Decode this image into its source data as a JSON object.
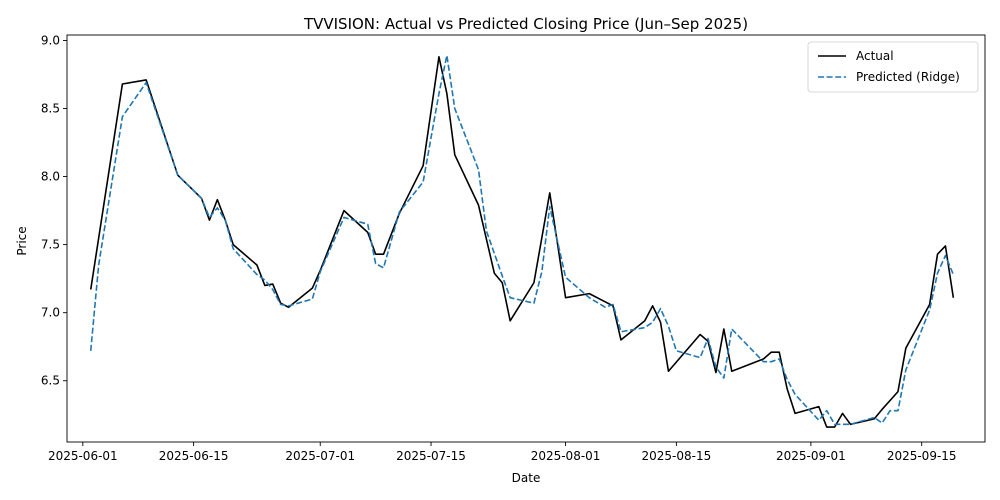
{
  "chart_data": {
    "type": "line",
    "title": "TVVISION: Actual vs Predicted Closing Price (Jun–Sep 2025)",
    "xlabel": "Date",
    "ylabel": "Price",
    "xlim": [
      "2025-05-30",
      "2025-09-23"
    ],
    "ylim": [
      6.05,
      9.04
    ],
    "x_ticks": [
      "2025-06-01",
      "2025-06-15",
      "2025-07-01",
      "2025-07-15",
      "2025-08-01",
      "2025-08-15",
      "2025-09-01",
      "2025-09-15"
    ],
    "y_ticks": [
      "6.5",
      "7.0",
      "7.5",
      "8.0",
      "8.5",
      "9.0"
    ],
    "grid": false,
    "legend_position": "top-right",
    "series": [
      {
        "name": "Actual",
        "color": "#000000",
        "dash": "solid",
        "points": [
          [
            "2025-06-02",
            7.17
          ],
          [
            "2025-06-06",
            8.68
          ],
          [
            "2025-06-09",
            8.71
          ],
          [
            "2025-06-13",
            8.01
          ],
          [
            "2025-06-16",
            7.84
          ],
          [
            "2025-06-17",
            7.68
          ],
          [
            "2025-06-18",
            7.83
          ],
          [
            "2025-06-19",
            7.68
          ],
          [
            "2025-06-20",
            7.5
          ],
          [
            "2025-06-23",
            7.35
          ],
          [
            "2025-06-24",
            7.2
          ],
          [
            "2025-06-25",
            7.21
          ],
          [
            "2025-06-26",
            7.07
          ],
          [
            "2025-06-27",
            7.04
          ],
          [
            "2025-06-30",
            7.18
          ],
          [
            "2025-07-01",
            7.31
          ],
          [
            "2025-07-04",
            7.75
          ],
          [
            "2025-07-07",
            7.59
          ],
          [
            "2025-07-08",
            7.43
          ],
          [
            "2025-07-09",
            7.43
          ],
          [
            "2025-07-11",
            7.73
          ],
          [
            "2025-07-14",
            8.08
          ],
          [
            "2025-07-16",
            8.88
          ],
          [
            "2025-07-17",
            8.61
          ],
          [
            "2025-07-18",
            8.16
          ],
          [
            "2025-07-21",
            7.79
          ],
          [
            "2025-07-23",
            7.29
          ],
          [
            "2025-07-24",
            7.22
          ],
          [
            "2025-07-25",
            6.94
          ],
          [
            "2025-07-28",
            7.22
          ],
          [
            "2025-07-30",
            7.88
          ],
          [
            "2025-07-31",
            7.5
          ],
          [
            "2025-08-01",
            7.11
          ],
          [
            "2025-08-04",
            7.14
          ],
          [
            "2025-08-06",
            7.08
          ],
          [
            "2025-08-07",
            7.05
          ],
          [
            "2025-08-08",
            6.8
          ],
          [
            "2025-08-11",
            6.94
          ],
          [
            "2025-08-12",
            7.05
          ],
          [
            "2025-08-13",
            6.93
          ],
          [
            "2025-08-14",
            6.57
          ],
          [
            "2025-08-18",
            6.84
          ],
          [
            "2025-08-19",
            6.79
          ],
          [
            "2025-08-20",
            6.56
          ],
          [
            "2025-08-21",
            6.88
          ],
          [
            "2025-08-22",
            6.57
          ],
          [
            "2025-08-26",
            6.66
          ],
          [
            "2025-08-27",
            6.71
          ],
          [
            "2025-08-28",
            6.71
          ],
          [
            "2025-08-29",
            6.44
          ],
          [
            "2025-08-30",
            6.26
          ],
          [
            "2025-09-02",
            6.31
          ],
          [
            "2025-09-03",
            6.16
          ],
          [
            "2025-09-04",
            6.16
          ],
          [
            "2025-09-05",
            6.26
          ],
          [
            "2025-09-06",
            6.18
          ],
          [
            "2025-09-09",
            6.22
          ],
          [
            "2025-09-10",
            6.29
          ],
          [
            "2025-09-12",
            6.42
          ],
          [
            "2025-09-13",
            6.74
          ],
          [
            "2025-09-16",
            7.06
          ],
          [
            "2025-09-17",
            7.43
          ],
          [
            "2025-09-18",
            7.49
          ],
          [
            "2025-09-19",
            7.11
          ]
        ]
      },
      {
        "name": "Predicted (Ridge)",
        "color": "#1f77b4",
        "dash": "dashed",
        "points": [
          [
            "2025-06-02",
            6.72
          ],
          [
            "2025-06-03",
            7.35
          ],
          [
            "2025-06-06",
            8.44
          ],
          [
            "2025-06-09",
            8.69
          ],
          [
            "2025-06-13",
            8.01
          ],
          [
            "2025-06-16",
            7.84
          ],
          [
            "2025-06-17",
            7.7
          ],
          [
            "2025-06-18",
            7.77
          ],
          [
            "2025-06-19",
            7.68
          ],
          [
            "2025-06-20",
            7.47
          ],
          [
            "2025-06-23",
            7.28
          ],
          [
            "2025-06-24",
            7.24
          ],
          [
            "2025-06-25",
            7.17
          ],
          [
            "2025-06-26",
            7.06
          ],
          [
            "2025-06-27",
            7.05
          ],
          [
            "2025-06-30",
            7.1
          ],
          [
            "2025-07-01",
            7.3
          ],
          [
            "2025-07-04",
            7.7
          ],
          [
            "2025-07-07",
            7.65
          ],
          [
            "2025-07-08",
            7.36
          ],
          [
            "2025-07-09",
            7.33
          ],
          [
            "2025-07-11",
            7.74
          ],
          [
            "2025-07-14",
            7.96
          ],
          [
            "2025-07-16",
            8.61
          ],
          [
            "2025-07-17",
            8.89
          ],
          [
            "2025-07-18",
            8.5
          ],
          [
            "2025-07-21",
            8.05
          ],
          [
            "2025-07-22",
            7.6
          ],
          [
            "2025-07-24",
            7.27
          ],
          [
            "2025-07-25",
            7.11
          ],
          [
            "2025-07-28",
            7.07
          ],
          [
            "2025-07-29",
            7.3
          ],
          [
            "2025-07-30",
            7.78
          ],
          [
            "2025-08-01",
            7.26
          ],
          [
            "2025-08-04",
            7.11
          ],
          [
            "2025-08-06",
            7.04
          ],
          [
            "2025-08-07",
            7.06
          ],
          [
            "2025-08-08",
            6.86
          ],
          [
            "2025-08-11",
            6.89
          ],
          [
            "2025-08-12",
            6.93
          ],
          [
            "2025-08-13",
            7.03
          ],
          [
            "2025-08-14",
            6.9
          ],
          [
            "2025-08-15",
            6.72
          ],
          [
            "2025-08-18",
            6.67
          ],
          [
            "2025-08-19",
            6.81
          ],
          [
            "2025-08-20",
            6.6
          ],
          [
            "2025-08-21",
            6.52
          ],
          [
            "2025-08-22",
            6.88
          ],
          [
            "2025-08-26",
            6.64
          ],
          [
            "2025-08-27",
            6.64
          ],
          [
            "2025-08-28",
            6.66
          ],
          [
            "2025-08-29",
            6.51
          ],
          [
            "2025-08-30",
            6.4
          ],
          [
            "2025-09-02",
            6.21
          ],
          [
            "2025-09-03",
            6.28
          ],
          [
            "2025-09-04",
            6.18
          ],
          [
            "2025-09-05",
            6.18
          ],
          [
            "2025-09-06",
            6.18
          ],
          [
            "2025-09-09",
            6.23
          ],
          [
            "2025-09-10",
            6.19
          ],
          [
            "2025-09-11",
            6.28
          ],
          [
            "2025-09-12",
            6.28
          ],
          [
            "2025-09-13",
            6.58
          ],
          [
            "2025-09-16",
            7.02
          ],
          [
            "2025-09-17",
            7.29
          ],
          [
            "2025-09-18",
            7.42
          ],
          [
            "2025-09-19",
            7.28
          ]
        ]
      }
    ]
  }
}
